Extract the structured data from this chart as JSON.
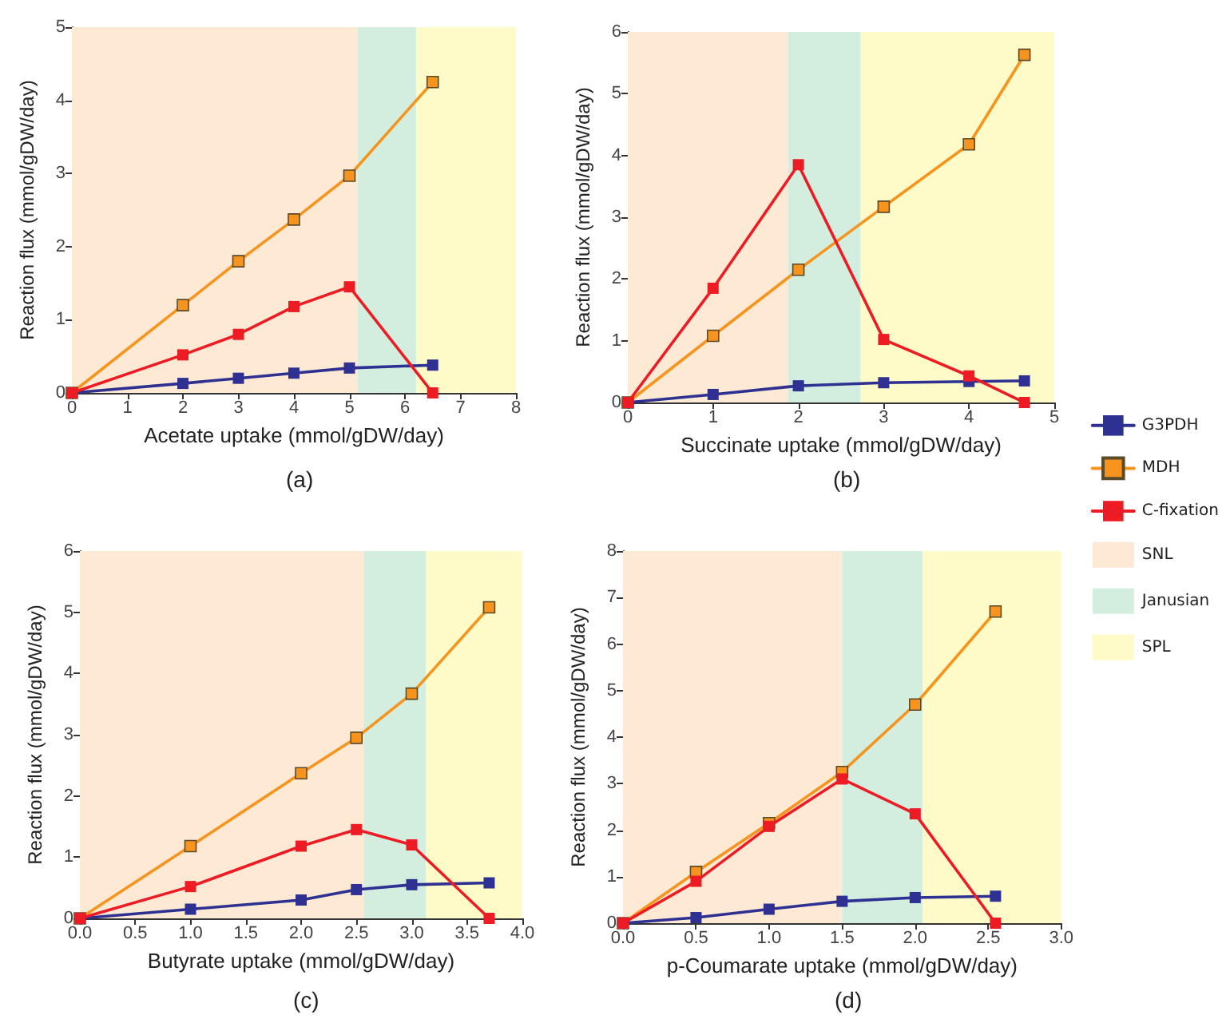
{
  "chart_data": [
    {
      "type": "line",
      "title": "(a)",
      "xlabel": "Acetate uptake (mmol/gDW/day)",
      "ylabel": "Reaction flux (mmol/gDW/day)",
      "x": [
        0,
        2,
        3,
        4,
        5,
        6.5
      ],
      "series": [
        {
          "color": "#2e3192",
          "values": [
            0,
            0.13,
            0.2,
            0.27,
            0.34,
            0.38
          ]
        },
        {
          "color": "#f7941d",
          "values": [
            0,
            1.2,
            1.8,
            2.37,
            2.97,
            4.25
          ]
        },
        {
          "color": "#ed1c24",
          "values": [
            0,
            0.52,
            0.8,
            1.18,
            1.45,
            0
          ]
        }
      ],
      "bands": [
        {
          "axis": "x",
          "from": 0,
          "to": 5.15,
          "color": "#fde9d4"
        },
        {
          "axis": "x",
          "from": 5.15,
          "to": 6.2,
          "color": "#d3eedf"
        },
        {
          "axis": "x",
          "from": 6.2,
          "to": 8,
          "color": "#fefbc8"
        }
      ],
      "xlim": [
        0,
        8
      ],
      "xticks": [
        0,
        1,
        2,
        3,
        4,
        5,
        6,
        7,
        8
      ],
      "ylim": [
        0,
        5
      ],
      "yticks": [
        0,
        1,
        2,
        3,
        4,
        5
      ],
      "grid": false,
      "marker": "square",
      "line_style": "solid"
    },
    {
      "type": "line",
      "title": "(b)",
      "xlabel": "Succinate uptake (mmol/gDW/day)",
      "ylabel": "Reaction flux (mmol/gDW/day)",
      "x": [
        0,
        1,
        2,
        3,
        4,
        4.65
      ],
      "series": [
        {
          "name": "G3PDH",
          "color": "#2e3192",
          "values": [
            0,
            0.13,
            0.27,
            0.32,
            0.34,
            0.35
          ]
        },
        {
          "name": "MDH",
          "color": "#f7941d",
          "values": [
            0,
            1.08,
            2.15,
            3.17,
            4.18,
            5.63
          ]
        },
        {
          "name": "C-fixation",
          "color": "#ed1c24",
          "values": [
            0,
            1.85,
            3.85,
            1.02,
            0.43,
            0
          ]
        }
      ],
      "bands": [
        {
          "axis": "x",
          "from": 0,
          "to": 1.88,
          "label": "SNL",
          "color": "#fde9d4"
        },
        {
          "axis": "x",
          "from": 1.88,
          "to": 2.73,
          "label": "Janusian",
          "color": "#d3eedf"
        },
        {
          "axis": "x",
          "from": 2.73,
          "to": 5,
          "label": "SPL",
          "color": "#fefbc8"
        }
      ],
      "xlim": [
        0,
        5
      ],
      "xticks": [
        0,
        1,
        2,
        3,
        4,
        5
      ],
      "ylim": [
        0,
        6
      ],
      "yticks": [
        0,
        1,
        2,
        3,
        4,
        5,
        6
      ],
      "grid": false,
      "legend": "right",
      "marker": "square",
      "line_style": "solid"
    },
    {
      "type": "line",
      "title": "(c)",
      "xlabel": "Butyrate uptake (mmol/gDW/day)",
      "ylabel": "Reaction flux (mmol/gDW/day)",
      "x": [
        0,
        1,
        2,
        2.5,
        3,
        3.7
      ],
      "series": [
        {
          "color": "#2e3192",
          "values": [
            0,
            0.15,
            0.3,
            0.47,
            0.55,
            0.58
          ]
        },
        {
          "color": "#f7941d",
          "values": [
            0,
            1.18,
            2.37,
            2.95,
            3.67,
            5.08
          ]
        },
        {
          "color": "#ed1c24",
          "values": [
            0,
            0.52,
            1.18,
            1.45,
            1.2,
            0
          ]
        }
      ],
      "bands": [
        {
          "axis": "x",
          "from": 0,
          "to": 2.57,
          "color": "#fde9d4"
        },
        {
          "axis": "x",
          "from": 2.57,
          "to": 3.13,
          "color": "#d3eedf"
        },
        {
          "axis": "x",
          "from": 3.13,
          "to": 4,
          "color": "#fefbc8"
        }
      ],
      "xlim": [
        0,
        4
      ],
      "xticks": [
        {
          "value": 0,
          "label": "0.0"
        },
        0.5,
        {
          "value": 1,
          "label": "1.0"
        },
        1.5,
        {
          "value": 2,
          "label": "2.0"
        },
        2.5,
        {
          "value": 3,
          "label": "3.0"
        },
        3.5,
        {
          "value": 4,
          "label": "4.0"
        }
      ],
      "ylim": [
        0,
        6
      ],
      "yticks": [
        0,
        1,
        2,
        3,
        4,
        5,
        6
      ],
      "grid": false,
      "marker": "square",
      "line_style": "solid"
    },
    {
      "type": "line",
      "title": "(d)",
      "xlabel": "p-Coumarate uptake (mmol/gDW/day)",
      "ylabel": "Reaction flux (mmol/gDW/day)",
      "x": [
        0,
        0.5,
        1,
        1.5,
        2,
        2.55
      ],
      "series": [
        {
          "color": "#2e3192",
          "values": [
            0,
            0.12,
            0.3,
            0.47,
            0.55,
            0.58
          ]
        },
        {
          "color": "#f7941d",
          "values": [
            0,
            1.1,
            2.15,
            3.25,
            4.7,
            6.7
          ]
        },
        {
          "color": "#ed1c24",
          "values": [
            0,
            0.9,
            2.08,
            3.1,
            2.35,
            0
          ]
        }
      ],
      "bands": [
        {
          "axis": "x",
          "from": 0,
          "to": 1.5,
          "color": "#fde9d4"
        },
        {
          "axis": "x",
          "from": 1.5,
          "to": 2.05,
          "color": "#d3eedf"
        },
        {
          "axis": "x",
          "from": 2.05,
          "to": 3,
          "color": "#fefbc8"
        }
      ],
      "xlim": [
        0,
        3
      ],
      "xticks": [
        {
          "value": 0,
          "label": "0.0"
        },
        0.5,
        {
          "value": 1,
          "label": "1.0"
        },
        1.5,
        {
          "value": 2,
          "label": "2.0"
        },
        2.5,
        {
          "value": 3,
          "label": "3.0"
        }
      ],
      "ylim": [
        0,
        8
      ],
      "yticks": [
        0,
        1,
        2,
        3,
        4,
        5,
        6,
        7,
        8
      ],
      "grid": false,
      "marker": "square",
      "line_style": "solid"
    }
  ]
}
